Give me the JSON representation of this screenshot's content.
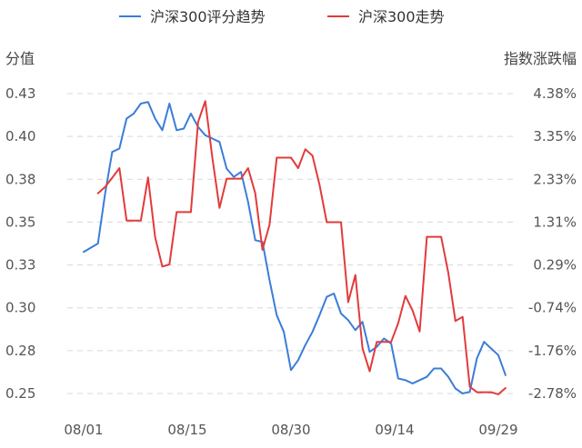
{
  "chart_data": {
    "type": "line",
    "title": "",
    "legend": {
      "position": "top-center",
      "items": [
        {
          "name": "沪深300评分趋势",
          "color": "#3b7dd8"
        },
        {
          "name": "沪深300走势",
          "color": "#e23b3b"
        }
      ]
    },
    "left_axis": {
      "label": "分值",
      "ticks": [
        "0.43",
        "0.40",
        "0.38",
        "0.35",
        "0.33",
        "0.30",
        "0.28",
        "0.25"
      ],
      "range": [
        0.25,
        0.43
      ]
    },
    "right_axis": {
      "label": "指数涨跌幅",
      "ticks": [
        "4.38%",
        "3.35%",
        "2.33%",
        "1.31%",
        "0.29%",
        "-0.74%",
        "-1.76%",
        "-2.78%"
      ],
      "range": [
        -2.78,
        4.38
      ]
    },
    "x_axis": {
      "ticks": [
        "08/01",
        "08/15",
        "08/30",
        "09/14",
        "09/29"
      ],
      "range": [
        0,
        58
      ]
    },
    "grid": {
      "horizontal": "dashed",
      "vertical": false
    },
    "series": [
      {
        "name": "沪深300评分趋势",
        "axis": "left",
        "color": "#3b7dd8",
        "points": [
          [
            0,
            0.335
          ],
          [
            2,
            0.34
          ],
          [
            3,
            0.37
          ],
          [
            4,
            0.395
          ],
          [
            5,
            0.397
          ],
          [
            6,
            0.415
          ],
          [
            7,
            0.418
          ],
          [
            8,
            0.424
          ],
          [
            9,
            0.425
          ],
          [
            10,
            0.415
          ],
          [
            11,
            0.408
          ],
          [
            12,
            0.424
          ],
          [
            13,
            0.408
          ],
          [
            14,
            0.409
          ],
          [
            15,
            0.418
          ],
          [
            16,
            0.41
          ],
          [
            17,
            0.405
          ],
          [
            18,
            0.403
          ],
          [
            19,
            0.401
          ],
          [
            20,
            0.385
          ],
          [
            21,
            0.38
          ],
          [
            22,
            0.383
          ],
          [
            23,
            0.365
          ],
          [
            24,
            0.342
          ],
          [
            25,
            0.341
          ],
          [
            26,
            0.318
          ],
          [
            27,
            0.297
          ],
          [
            28,
            0.287
          ],
          [
            29,
            0.264
          ],
          [
            30,
            0.27
          ],
          [
            31,
            0.279
          ],
          [
            32,
            0.287
          ],
          [
            33,
            0.297
          ],
          [
            34,
            0.308
          ],
          [
            35,
            0.31
          ],
          [
            36,
            0.298
          ],
          [
            37,
            0.294
          ],
          [
            38,
            0.288
          ],
          [
            39,
            0.293
          ],
          [
            40,
            0.275
          ],
          [
            41,
            0.278
          ],
          [
            42,
            0.283
          ],
          [
            43,
            0.28
          ],
          [
            44,
            0.259
          ],
          [
            45,
            0.258
          ],
          [
            46,
            0.256
          ],
          [
            47,
            0.258
          ],
          [
            48,
            0.26
          ],
          [
            49,
            0.265
          ],
          [
            50,
            0.265
          ],
          [
            51,
            0.26
          ],
          [
            52,
            0.253
          ],
          [
            53,
            0.25
          ],
          [
            54,
            0.251
          ],
          [
            55,
            0.271
          ],
          [
            56,
            0.281
          ],
          [
            57,
            0.277
          ],
          [
            58,
            0.273
          ],
          [
            59,
            0.261
          ]
        ]
      },
      {
        "name": "沪深300走势",
        "axis": "right",
        "color": "#e23b3b",
        "points": [
          [
            2,
            2.0
          ],
          [
            3,
            2.15
          ],
          [
            4,
            2.37
          ],
          [
            5,
            2.6
          ],
          [
            6,
            1.35
          ],
          [
            7,
            1.35
          ],
          [
            8,
            1.35
          ],
          [
            9,
            2.38
          ],
          [
            10,
            0.95
          ],
          [
            11,
            0.25
          ],
          [
            12,
            0.3
          ],
          [
            13,
            1.55
          ],
          [
            14,
            1.55
          ],
          [
            15,
            1.55
          ],
          [
            16,
            3.7
          ],
          [
            17,
            4.2
          ],
          [
            18,
            2.85
          ],
          [
            19,
            1.65
          ],
          [
            20,
            2.35
          ],
          [
            21,
            2.35
          ],
          [
            22,
            2.35
          ],
          [
            23,
            2.6
          ],
          [
            24,
            2.0
          ],
          [
            25,
            0.65
          ],
          [
            26,
            1.25
          ],
          [
            27,
            2.85
          ],
          [
            28,
            2.85
          ],
          [
            29,
            2.85
          ],
          [
            30,
            2.6
          ],
          [
            31,
            3.05
          ],
          [
            32,
            2.9
          ],
          [
            33,
            2.2
          ],
          [
            34,
            1.31
          ],
          [
            35,
            1.31
          ],
          [
            36,
            1.31
          ],
          [
            37,
            -0.6
          ],
          [
            38,
            0.05
          ],
          [
            39,
            -1.7
          ],
          [
            40,
            -2.25
          ],
          [
            41,
            -1.55
          ],
          [
            42,
            -1.55
          ],
          [
            43,
            -1.55
          ],
          [
            44,
            -1.1
          ],
          [
            45,
            -0.45
          ],
          [
            46,
            -0.8
          ],
          [
            47,
            -1.3
          ],
          [
            48,
            0.96
          ],
          [
            49,
            0.96
          ],
          [
            50,
            0.96
          ],
          [
            51,
            0.1
          ],
          [
            52,
            -1.05
          ],
          [
            53,
            -0.95
          ],
          [
            54,
            -2.62
          ],
          [
            55,
            -2.75
          ],
          [
            56,
            -2.75
          ],
          [
            57,
            -2.75
          ],
          [
            58,
            -2.8
          ],
          [
            59,
            -2.65
          ]
        ]
      }
    ]
  }
}
